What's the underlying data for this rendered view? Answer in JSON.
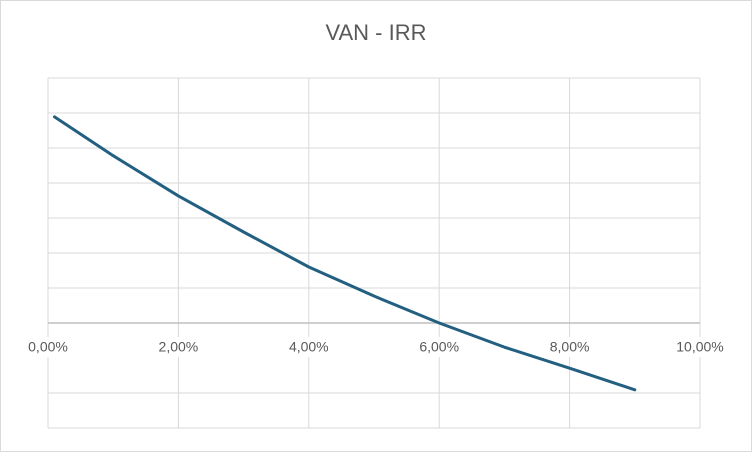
{
  "chart_data": {
    "type": "line",
    "title": "VAN - IRR",
    "x": [
      0.1,
      1,
      2,
      3,
      4,
      5,
      6,
      7,
      8,
      9
    ],
    "series": [
      {
        "color": "#235f80",
        "values": [
          5.89,
          4.78,
          3.63,
          2.6,
          1.6,
          0.77,
          0,
          -0.69,
          -1.29,
          -1.91
        ]
      }
    ],
    "xlim": [
      0,
      10
    ],
    "xticks": [
      {
        "value": 0,
        "label": "0,00%"
      },
      {
        "value": 2,
        "label": "2,00%"
      },
      {
        "value": 4,
        "label": "4,00%"
      },
      {
        "value": 6,
        "label": "6,00%"
      },
      {
        "value": 8,
        "label": "8,00%"
      },
      {
        "value": 10,
        "label": "10,00%"
      }
    ],
    "ylim": [
      -3,
      7
    ],
    "yticks": [
      -3,
      -2,
      0,
      1,
      2,
      3,
      4,
      5,
      6,
      7
    ],
    "grid": true
  }
}
